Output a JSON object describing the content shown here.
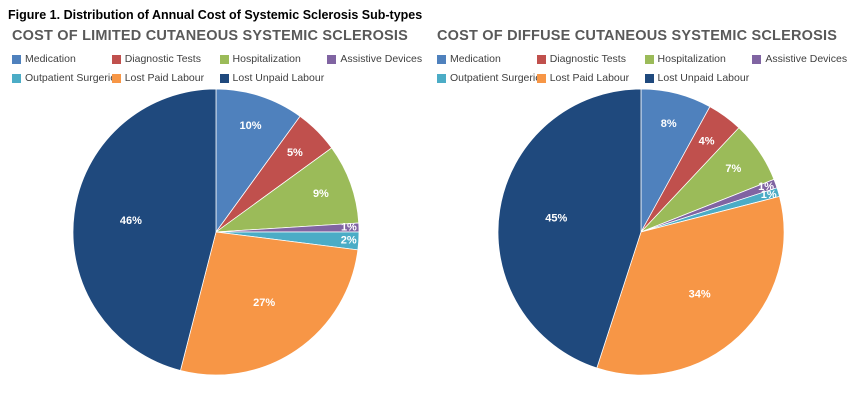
{
  "figure_title": "Figure 1. Distribution of Annual Cost of Systemic Sclerosis Sub-types",
  "chart_data": [
    {
      "type": "pie",
      "title": "COST OF LIMITED CUTANEOUS SYSTEMIC SCLEROSIS",
      "labels": [
        "Medication",
        "Diagnostic Tests",
        "Hospitalization",
        "Assistive Devices",
        "Outpatient Surgeries",
        "Lost Paid Labour",
        "Lost Unpaid Labour"
      ],
      "values": [
        10,
        5,
        9,
        1,
        2,
        27,
        46
      ],
      "value_labels": [
        "10%",
        "5%",
        "9%",
        "1%",
        "2%",
        "27%",
        "46%"
      ],
      "colors": [
        "#4F81BD",
        "#C0504D",
        "#9BBB59",
        "#8064A2",
        "#4BACC6",
        "#F79646",
        "#1F497D"
      ],
      "legend_position": "top",
      "start_angle_deg": 0,
      "direction": "clockwise"
    },
    {
      "type": "pie",
      "title": "COST OF DIFFUSE CUTANEOUS SYSTEMIC SCLEROSIS",
      "labels": [
        "Medication",
        "Diagnostic Tests",
        "Hospitalization",
        "Assistive Devices",
        "Outpatient Surgeries",
        "Lost Paid Labour",
        "Lost Unpaid Labour"
      ],
      "values": [
        8,
        4,
        7,
        1,
        1,
        34,
        45
      ],
      "value_labels": [
        "8%",
        "4%",
        "7%",
        "1%",
        "1%",
        "34%",
        "45%"
      ],
      "colors": [
        "#4F81BD",
        "#C0504D",
        "#9BBB59",
        "#8064A2",
        "#4BACC6",
        "#F79646",
        "#1F497D"
      ],
      "legend_position": "top",
      "start_angle_deg": 0,
      "direction": "clockwise"
    }
  ]
}
